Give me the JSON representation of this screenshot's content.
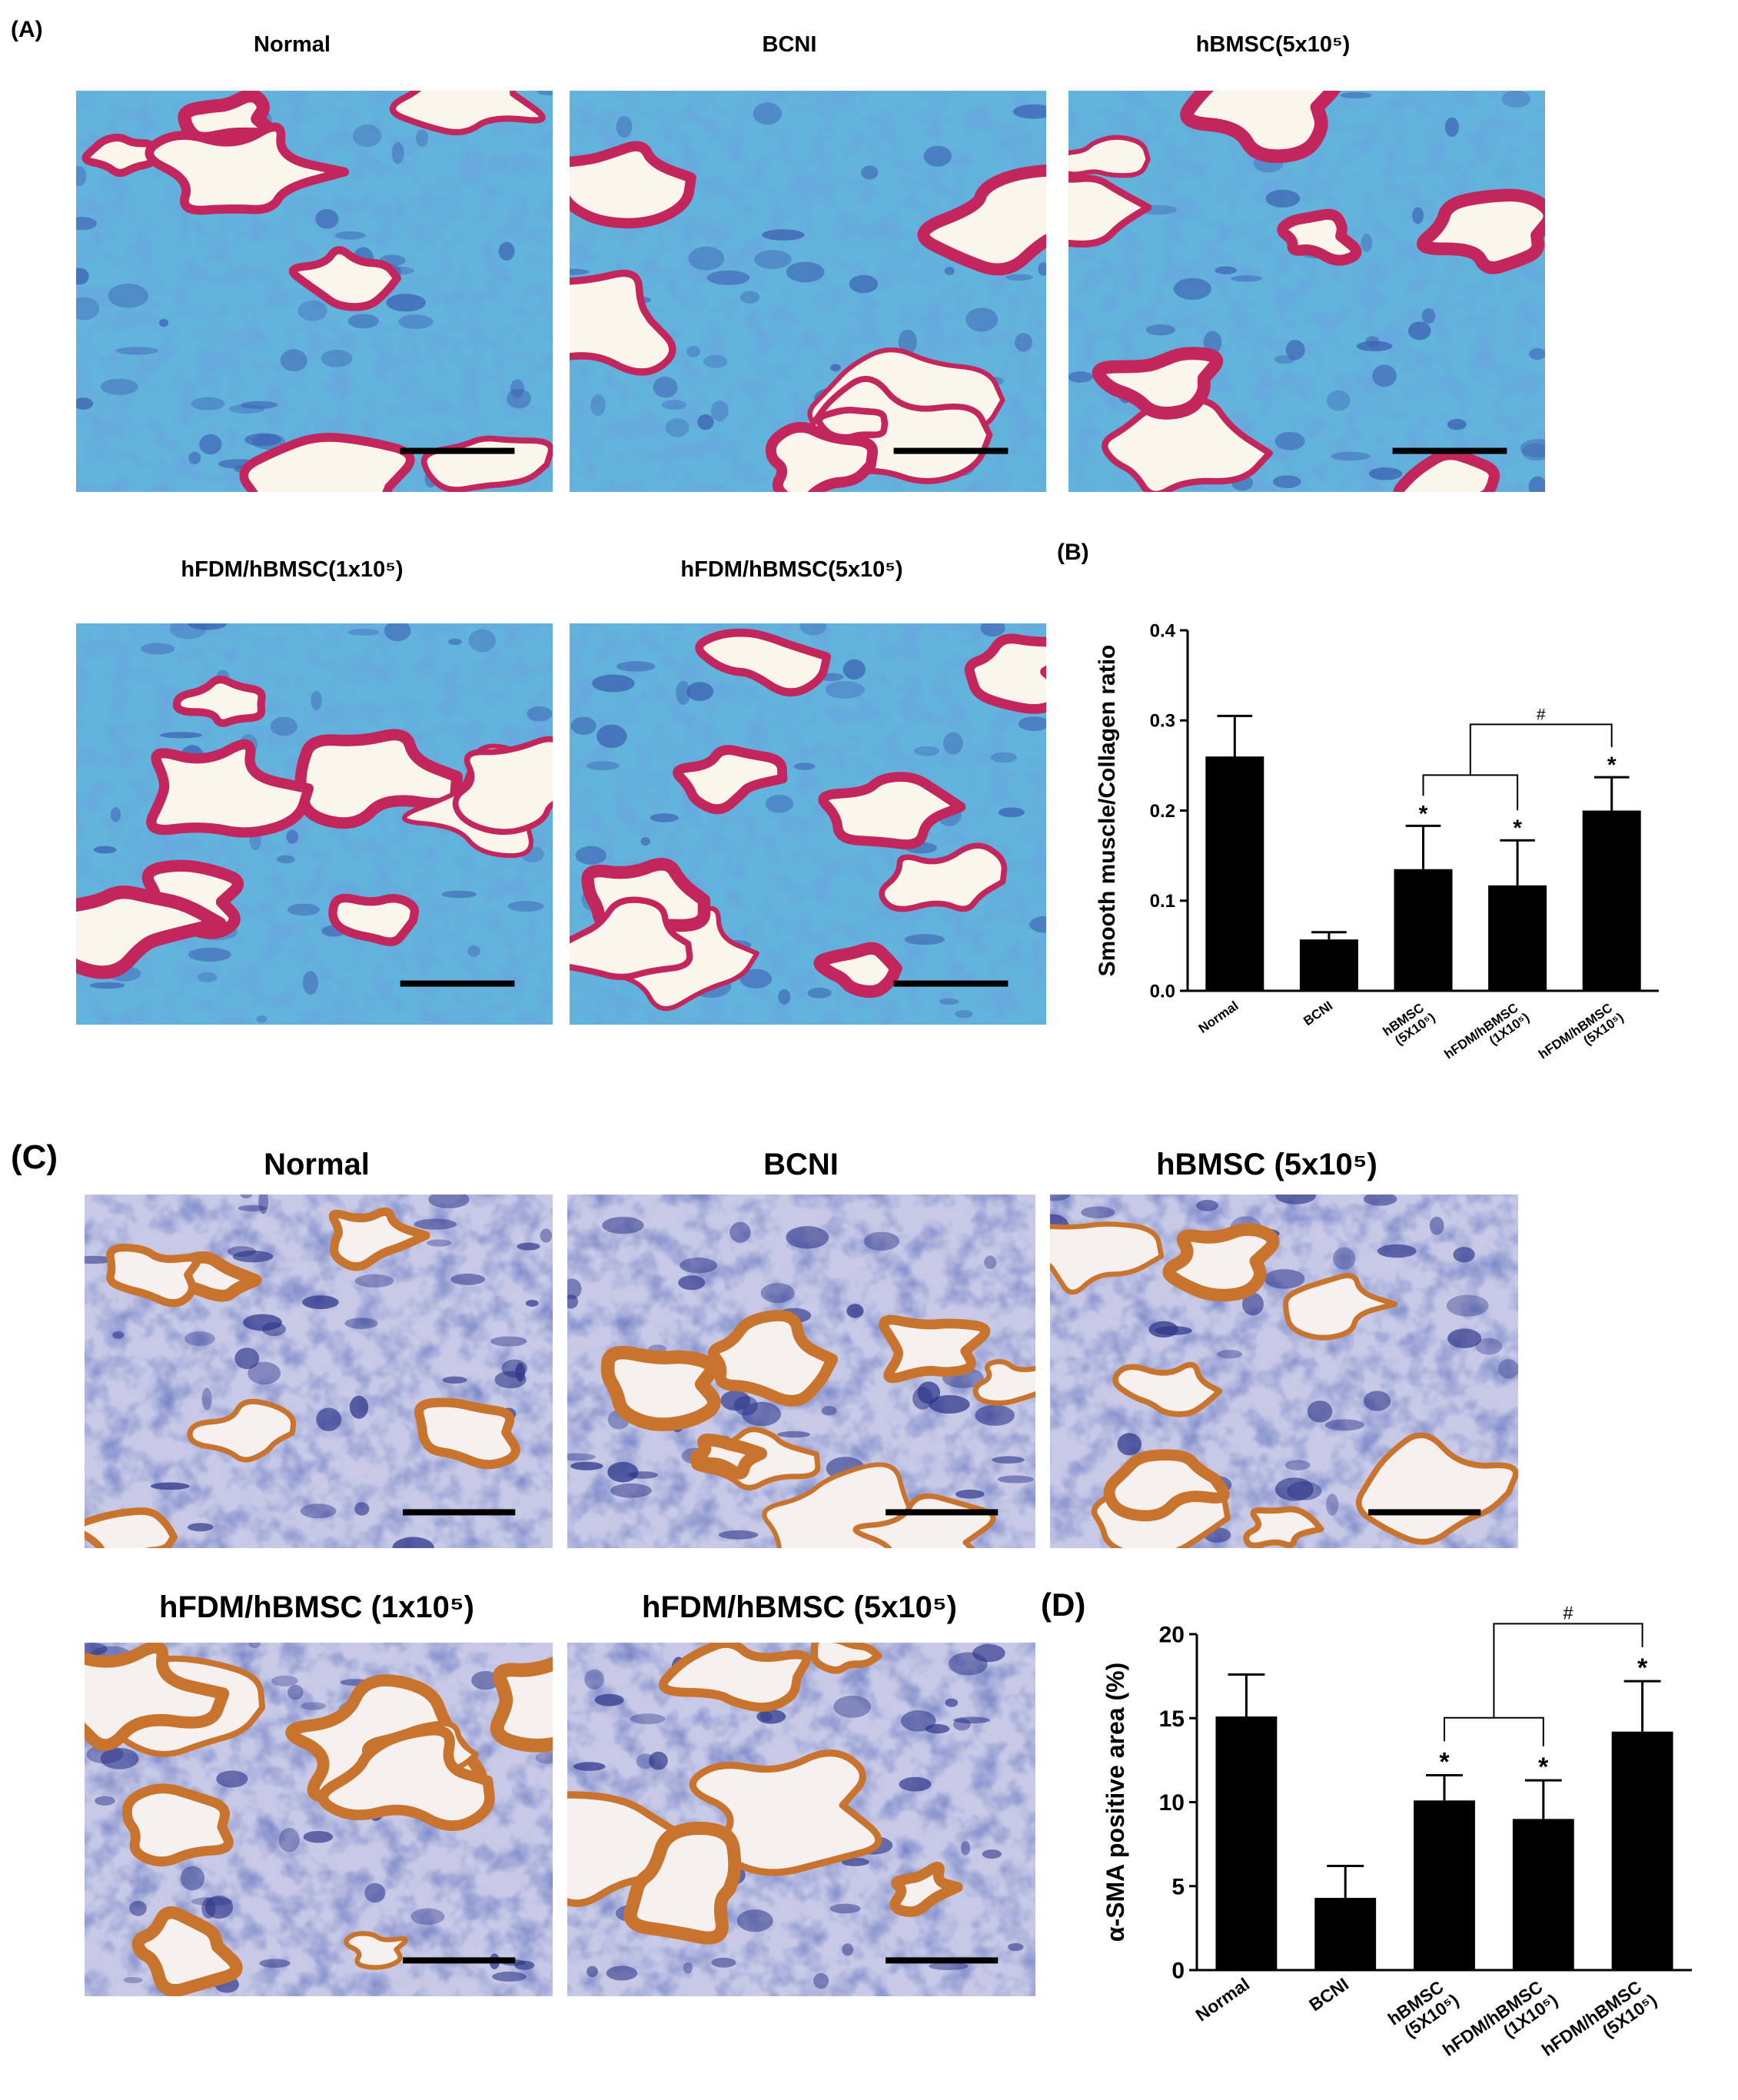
{
  "figure_a": {
    "label": "(A)",
    "captions": [
      "Normal",
      "BCNI",
      "hBMSC(5x10⁵)",
      "hFDM/hBMSC(1x10⁵)",
      "hFDM/hBMSC(5x10⁵)"
    ]
  },
  "figure_c": {
    "label": "(C)",
    "captions": [
      "Normal",
      "BCNI",
      "hBMSC (5x10⁵)",
      "hFDM/hBMSC (1x10⁵)",
      "hFDM/hBMSC (5x10⁵)"
    ]
  },
  "chart_data": [
    {
      "type": "bar",
      "panel_label": "(B)",
      "y_label": "Smooth muscle/Collagen ratio",
      "categories": [
        "Normal",
        "BCNI",
        "hBMSC (5X10⁵)",
        "hFDM/hBMSC (1X10⁵)",
        "hFDM/hBMSC (5X10⁵)"
      ],
      "values": [
        0.26,
        0.057,
        0.135,
        0.117,
        0.2
      ],
      "errors": [
        0.045,
        0.008,
        0.048,
        0.05,
        0.037
      ],
      "significance": [
        null,
        null,
        "*",
        "*",
        "*"
      ],
      "bracket_label": "#",
      "color": "#000000",
      "ylim": [
        0,
        0.4
      ],
      "yticks": [
        {
          "value": 0,
          "label": "0.0"
        },
        0.1,
        0.2,
        0.3,
        0.4
      ]
    },
    {
      "type": "bar",
      "panel_label": "(D)",
      "y_label": "α-SMA positive area (%)",
      "categories": [
        "Normal",
        "BCNI",
        "hBMSC (5X10⁵)",
        "hFDM/hBMSC (1X10⁵)",
        "hFDM/hBMSC (5X10⁵)"
      ],
      "values": [
        15.1,
        4.3,
        10.1,
        9.0,
        14.2
      ],
      "errors": [
        2.5,
        1.9,
        1.5,
        2.3,
        3.0
      ],
      "significance": [
        null,
        null,
        "*",
        "*",
        "*"
      ],
      "bracket_label": "#",
      "color": "#000000",
      "ylim": [
        0,
        20
      ],
      "yticks": [
        0,
        5,
        10,
        15,
        20
      ]
    }
  ]
}
